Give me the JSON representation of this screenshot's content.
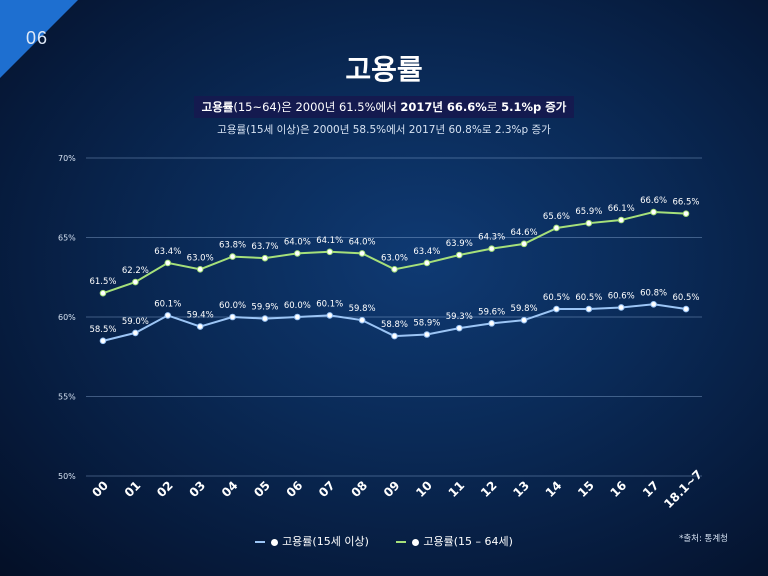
{
  "page_number": "06",
  "title": "고용률",
  "subtitle_main": {
    "part1": "고용률",
    "part2": "(15~64)은 2000년 61.5%에서 ",
    "part3": "2017년 66.6%",
    "part4": "로 ",
    "part5": "5.1%p 증가"
  },
  "subtitle_secondary": "고용률(15세 이상)은 2000년 58.5%에서 2017년 60.8%로 2.3%p 증가",
  "source": "*출처: 통계청",
  "colors": {
    "green_series": "#a6e07a",
    "blue_series": "#9cc5f5"
  },
  "chart_data": {
    "type": "line",
    "categories": [
      "00",
      "01",
      "02",
      "03",
      "04",
      "05",
      "06",
      "07",
      "08",
      "09",
      "10",
      "11",
      "12",
      "13",
      "14",
      "15",
      "16",
      "17",
      "18.1~7"
    ],
    "ylim": [
      50,
      70
    ],
    "yticks": [
      "50%",
      "55%",
      "60%",
      "65%",
      "70%"
    ],
    "grid": true,
    "legend_position": "bottom-center",
    "series": [
      {
        "name": "고용률(15세 이상)",
        "values": [
          58.5,
          59.0,
          60.1,
          59.4,
          60.0,
          59.9,
          60.0,
          60.1,
          59.8,
          58.8,
          58.9,
          59.3,
          59.6,
          59.8,
          60.5,
          60.5,
          60.6,
          60.8,
          60.5
        ],
        "labels": [
          "58.5%",
          "59.0%",
          "60.1%",
          "59.4%",
          "60.0%",
          "59.9%",
          "60.0%",
          "60.1%",
          "59.8%",
          "58.8%",
          "58.9%",
          "59.3%",
          "59.6%",
          "59.8%",
          "60.5%",
          "60.5%",
          "60.6%",
          "60.8%",
          "60.5%"
        ]
      },
      {
        "name": "고용률(15 – 64세)",
        "values": [
          61.5,
          62.2,
          63.4,
          63.0,
          63.8,
          63.7,
          64.0,
          64.1,
          64.0,
          63.0,
          63.4,
          63.9,
          64.3,
          64.6,
          65.6,
          65.9,
          66.1,
          66.6,
          66.5
        ],
        "labels": [
          "61.5%",
          "62.2%",
          "63.4%",
          "63.0%",
          "63.8%",
          "63.7%",
          "64.0%",
          "64.1%",
          "64.0%",
          "63.0%",
          "63.4%",
          "63.9%",
          "64.3%",
          "64.6%",
          "65.6%",
          "65.9%",
          "66.1%",
          "66.6%",
          "66.5%"
        ]
      }
    ]
  }
}
